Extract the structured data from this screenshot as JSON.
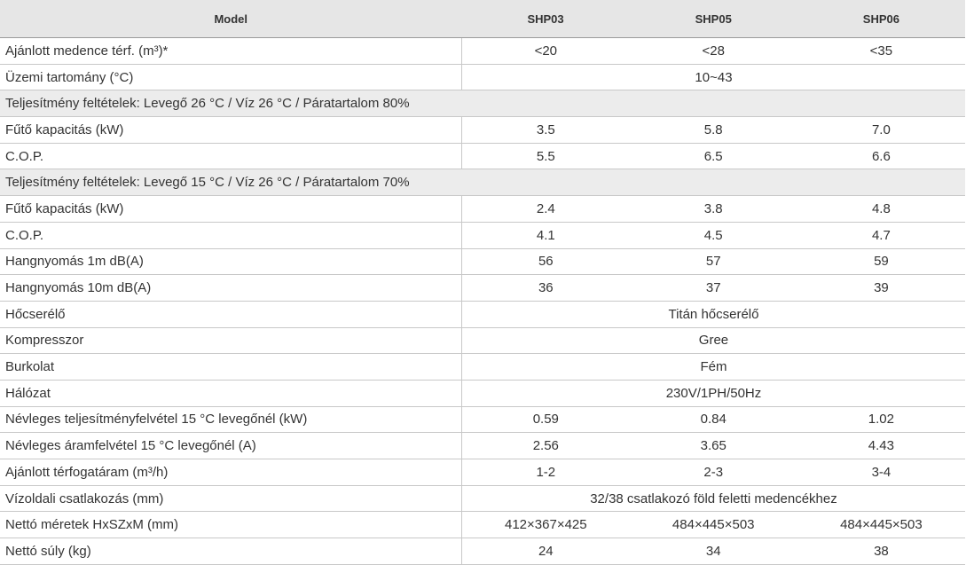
{
  "table": {
    "header": [
      "Model",
      "SHP03",
      "SHP05",
      "SHP06"
    ],
    "rows": [
      [
        "Ajánlott medence térf. (m³)*",
        "<20",
        "<28",
        "<35"
      ],
      [
        "Üzemi tartomány (°C)",
        "10~43"
      ],
      [
        "Teljesítmény feltételek: Levegő 26 °C / Víz 26 °C / Páratartalom 80%"
      ],
      [
        "Fűtő kapacitás (kW)",
        "3.5",
        "5.8",
        "7.0"
      ],
      [
        "C.O.P.",
        "5.5",
        "6.5",
        "6.6"
      ],
      [
        "Teljesítmény feltételek: Levegő 15 °C / Víz 26 °C / Páratartalom 70%"
      ],
      [
        "Fűtő kapacitás (kW)",
        "2.4",
        "3.8",
        "4.8"
      ],
      [
        "C.O.P.",
        "4.1",
        "4.5",
        "4.7"
      ],
      [
        "Hangnyomás 1m dB(A)",
        "56",
        "57",
        "59"
      ],
      [
        "Hangnyomás 10m dB(A)",
        "36",
        "37",
        "39"
      ],
      [
        "Hőcserélő",
        "Titán hőcserélő"
      ],
      [
        "Kompresszor",
        "Gree"
      ],
      [
        "Burkolat",
        "Fém"
      ],
      [
        "Hálózat",
        "230V/1PH/50Hz"
      ],
      [
        "Névleges teljesítményfelvétel 15 °C levegőnél (kW)",
        "0.59",
        "0.84",
        "1.02"
      ],
      [
        "Névleges áramfelvétel 15 °C levegőnél (A)",
        "2.56",
        "3.65",
        "4.43"
      ],
      [
        "Ajánlott térfogatáram (m³/h)",
        "1-2",
        "2-3",
        "3-4"
      ],
      [
        "Vízoldali csatlakozás (mm)",
        "32/38 csatlakozó föld feletti medencékhez"
      ],
      [
        "Nettó méretek HxSZxM (mm)",
        "412×367×425",
        "484×445×503",
        "484×445×503"
      ],
      [
        "Nettó súly (kg)",
        "24",
        "34",
        "38"
      ]
    ]
  }
}
